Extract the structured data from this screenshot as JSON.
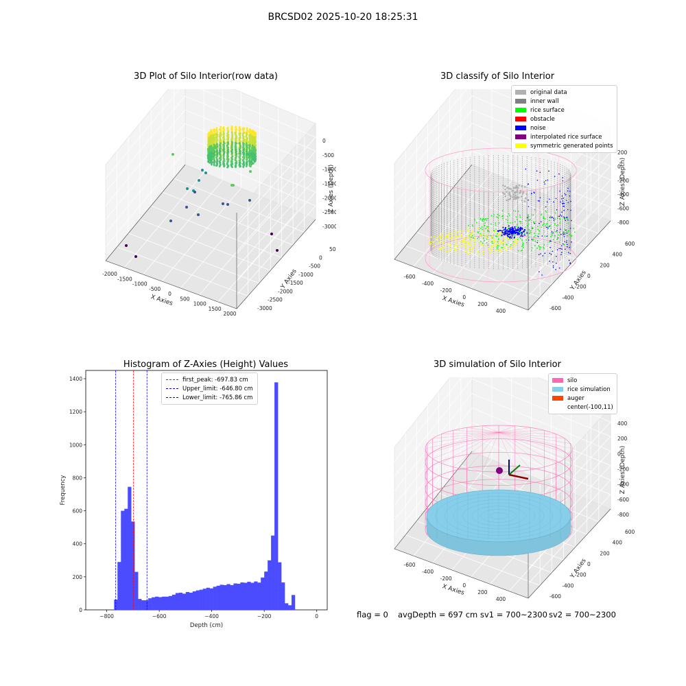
{
  "figure": {
    "suptitle": "BRCSD02 2025-10-20 18:25:31",
    "footer": {
      "flag": "flag = 0",
      "avg_depth": "avgDepth = 697 cm",
      "sv1": "sv1 = 700~2300",
      "sv2": "sv2 = 700~2300"
    }
  },
  "chart_data": [
    {
      "type": "scatter",
      "title": "3D Plot of Silo Interior(row data)",
      "xlabel": "X Axies",
      "ylabel": "Y Axies",
      "zlabel": "Z Axies (Depth)",
      "x_ticks": [
        "-2000",
        "-1500",
        "-1000",
        "-500",
        "0",
        "500",
        "1000",
        "1500",
        "2000"
      ],
      "y_ticks": [
        "500",
        "0",
        "-500",
        "-1000",
        "-1500",
        "-2000",
        "-2500",
        "-3000"
      ],
      "z_ticks": [
        "0",
        "-500",
        "-1000",
        "-1500",
        "-2000",
        "-2500",
        "-3000"
      ],
      "colormap": [
        "#440154",
        "#3b528b",
        "#21918c",
        "#5ec962",
        "#fde725"
      ]
    },
    {
      "type": "scatter",
      "title": "3D classify of Silo Interior",
      "xlabel": "X Axies",
      "ylabel": "Y Axies",
      "zlabel": "Z Axies (Depth)",
      "x_ticks": [
        "-600",
        "-400",
        "-200",
        "0",
        "200",
        "400"
      ],
      "y_ticks": [
        "600",
        "400",
        "200",
        "0",
        "-200",
        "-400",
        "-600"
      ],
      "z_ticks": [
        "200",
        "0",
        "-200",
        "-400",
        "-600",
        "-800"
      ],
      "legend": [
        {
          "label": "original data",
          "color": "#b0b0b0"
        },
        {
          "label": "inner wall",
          "color": "#808080"
        },
        {
          "label": "rice surface",
          "color": "#00ff00"
        },
        {
          "label": "obstacle",
          "color": "#ff0000"
        },
        {
          "label": "noise",
          "color": "#0000ff"
        },
        {
          "label": "interpolated rice surface",
          "color": "#800080"
        },
        {
          "label": "symmetric generated points",
          "color": "#ffff00"
        }
      ],
      "legend_position": "top-right"
    },
    {
      "type": "bar",
      "title": "Histogram of Z-Axies (Height) Values",
      "xlabel": "Depth (cm)",
      "ylabel": "Frequency",
      "xlim": [
        -880,
        40
      ],
      "ylim": [
        0,
        1450
      ],
      "x_ticks": [
        -800,
        -600,
        -400,
        -200,
        0
      ],
      "y_ticks": [
        0,
        200,
        400,
        600,
        800,
        1000,
        1200,
        1400
      ],
      "bar_color": "#4c4cff",
      "bins": [
        [
          -772,
          -759,
          62
        ],
        [
          -759,
          -746,
          290
        ],
        [
          -746,
          -733,
          600
        ],
        [
          -733,
          -720,
          612
        ],
        [
          -720,
          -707,
          745
        ],
        [
          -707,
          -694,
          535
        ],
        [
          -694,
          -681,
          230
        ],
        [
          -681,
          -668,
          66
        ],
        [
          -668,
          -655,
          58
        ],
        [
          -655,
          -642,
          58
        ],
        [
          -642,
          -629,
          70
        ],
        [
          -629,
          -616,
          76
        ],
        [
          -616,
          -603,
          80
        ],
        [
          -603,
          -590,
          77
        ],
        [
          -590,
          -577,
          80
        ],
        [
          -577,
          -564,
          80
        ],
        [
          -564,
          -551,
          84
        ],
        [
          -551,
          -538,
          92
        ],
        [
          -538,
          -525,
          102
        ],
        [
          -525,
          -512,
          104
        ],
        [
          -512,
          -499,
          98
        ],
        [
          -499,
          -486,
          108
        ],
        [
          -486,
          -473,
          104
        ],
        [
          -473,
          -460,
          112
        ],
        [
          -460,
          -447,
          118
        ],
        [
          -447,
          -434,
          122
        ],
        [
          -434,
          -421,
          128
        ],
        [
          -421,
          -408,
          134
        ],
        [
          -408,
          -395,
          130
        ],
        [
          -395,
          -382,
          140
        ],
        [
          -382,
          -369,
          146
        ],
        [
          -369,
          -356,
          152
        ],
        [
          -356,
          -343,
          150
        ],
        [
          -343,
          -330,
          156
        ],
        [
          -330,
          -317,
          150
        ],
        [
          -317,
          -304,
          160
        ],
        [
          -304,
          -291,
          158
        ],
        [
          -291,
          -278,
          166
        ],
        [
          -278,
          -265,
          164
        ],
        [
          -265,
          -252,
          170
        ],
        [
          -252,
          -239,
          164
        ],
        [
          -239,
          -226,
          172
        ],
        [
          -226,
          -213,
          165
        ],
        [
          -213,
          -200,
          196
        ],
        [
          -200,
          -187,
          232
        ],
        [
          -187,
          -174,
          300
        ],
        [
          -174,
          -161,
          450
        ],
        [
          -161,
          -148,
          1378
        ],
        [
          -148,
          -135,
          288
        ],
        [
          -135,
          -122,
          166
        ],
        [
          -122,
          -109,
          40
        ],
        [
          -109,
          -96,
          28
        ],
        [
          -96,
          -83,
          90
        ]
      ],
      "vlines": [
        {
          "label": "first_peak: -697.83 cm",
          "value": -697.83,
          "color": "#ff0000"
        },
        {
          "label": "Upper_limit: -646.80 cm",
          "value": -646.8,
          "color": "#0000ff"
        },
        {
          "label": "Lower_limit: -765.86 cm",
          "value": -765.86,
          "color": "#0000ff"
        }
      ],
      "legend_position": "upper center"
    },
    {
      "type": "scatter",
      "title": "3D simulation of Silo Interior",
      "xlabel": "X Axies",
      "ylabel": "Y Axies",
      "zlabel": "Z Axies (Depth)",
      "x_ticks": [
        "-600",
        "-400",
        "-200",
        "0",
        "200",
        "400"
      ],
      "y_ticks": [
        "600",
        "400",
        "200",
        "0",
        "-200",
        "-400",
        "-600"
      ],
      "z_ticks": [
        "400",
        "200",
        "0",
        "-200",
        "-400",
        "-600",
        "-800"
      ],
      "legend": [
        {
          "label": "silo",
          "color": "#ff69b4"
        },
        {
          "label": "rice simulation",
          "color": "#87ceeb"
        },
        {
          "label": "auger",
          "color": "#ff4500"
        },
        {
          "label": "center(-100,11)",
          "color": ""
        }
      ],
      "legend_position": "top-right"
    }
  ]
}
